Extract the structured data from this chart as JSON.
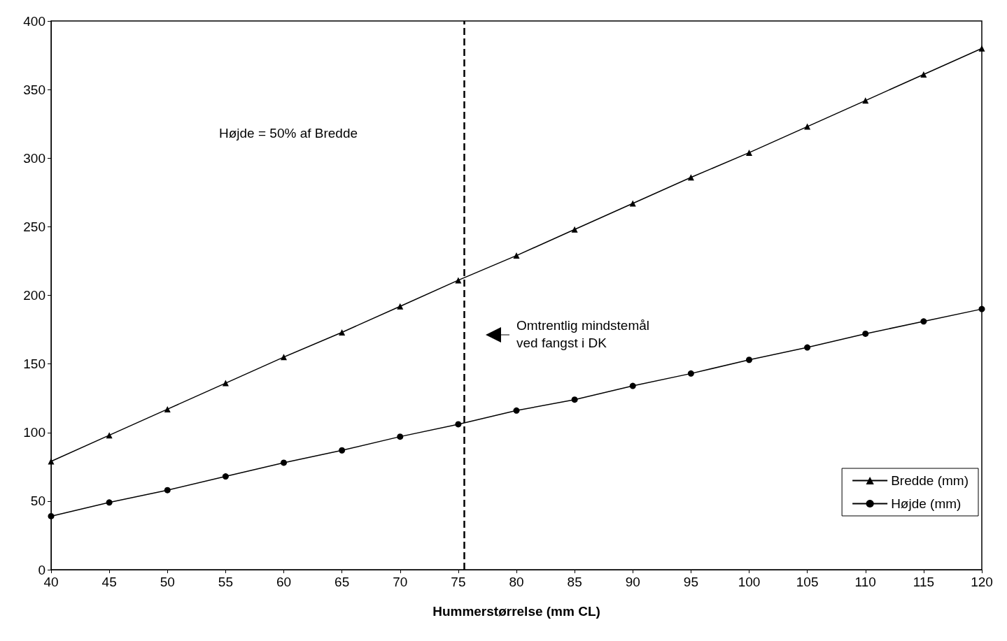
{
  "chart_data": {
    "type": "line",
    "xlabel": "Hummerstørrelse (mm CL)",
    "x": [
      40,
      45,
      50,
      55,
      60,
      65,
      70,
      75,
      80,
      85,
      90,
      95,
      100,
      105,
      110,
      115,
      120
    ],
    "series": [
      {
        "name": "Bredde (mm)",
        "color": "#000000",
        "marker": "triangle",
        "values": [
          79,
          98,
          117,
          136,
          155,
          173,
          192,
          211,
          229,
          248,
          267,
          286,
          304,
          323,
          342,
          361,
          380
        ]
      },
      {
        "name": "Højde (mm)",
        "color": "#000000",
        "marker": "circle",
        "values": [
          39,
          49,
          58,
          68,
          78,
          87,
          97,
          106,
          116,
          124,
          134,
          143,
          153,
          162,
          172,
          181,
          190
        ]
      }
    ],
    "xlim": [
      40,
      120
    ],
    "xticks": [
      40,
      45,
      50,
      55,
      60,
      65,
      70,
      75,
      80,
      85,
      90,
      95,
      100,
      105,
      110,
      115,
      120
    ],
    "ylim": [
      0,
      400
    ],
    "yticks": [
      0,
      50,
      100,
      150,
      200,
      250,
      300,
      350,
      400
    ],
    "grid": false,
    "legend": "bottom right",
    "line_style": "solid",
    "ref_lines": [
      {
        "axis": "x",
        "value": 75.5,
        "label": null,
        "line_style": "dashed",
        "color": "#000000"
      }
    ],
    "annotations": [
      "Højde = 50% af Bredde",
      "Omtrentlig mindstemål\nved fangst i DK"
    ]
  }
}
